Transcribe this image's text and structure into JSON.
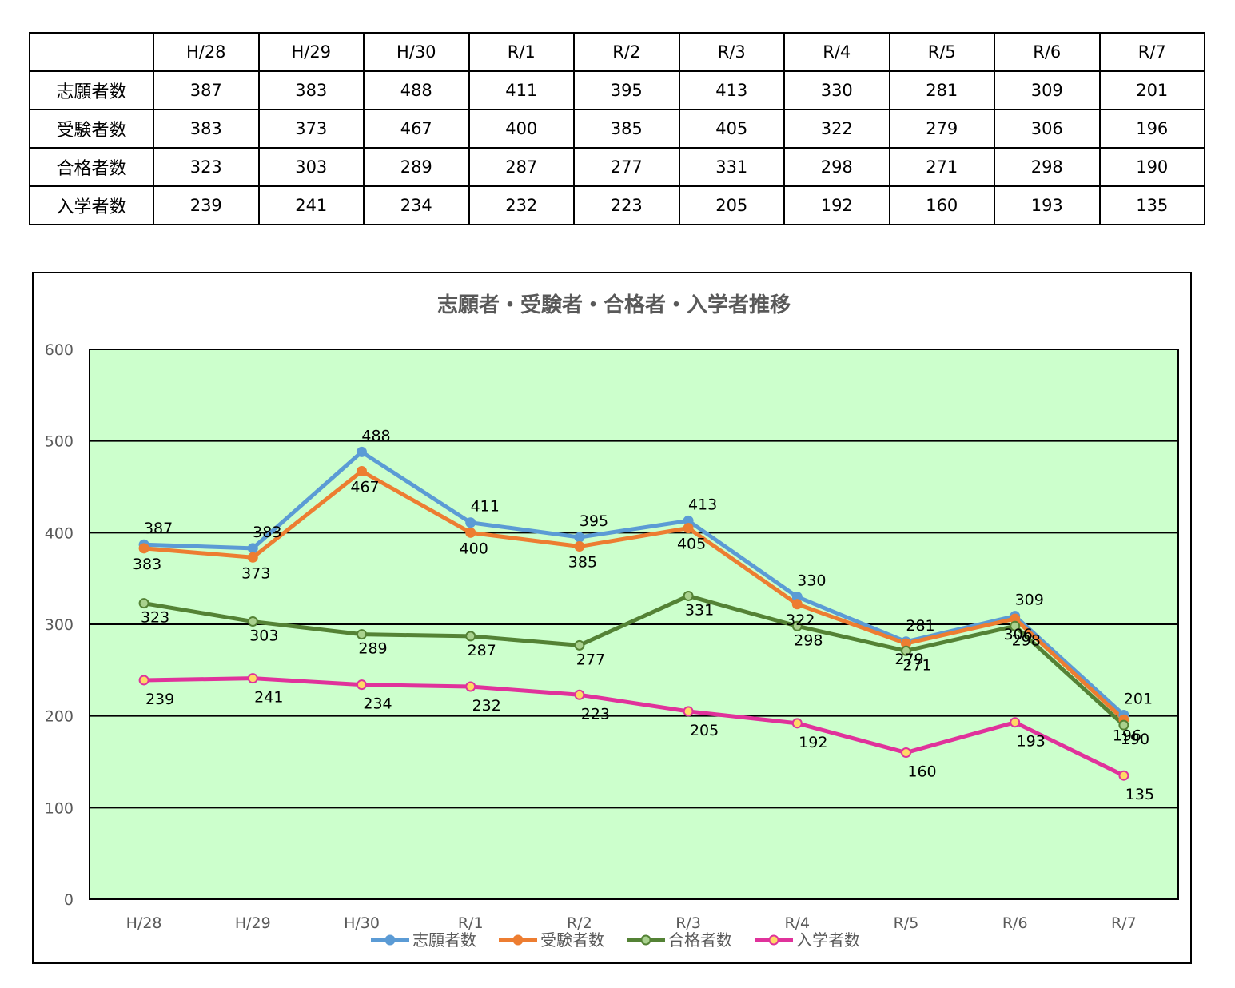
{
  "table": {
    "corner": "",
    "columns": [
      "H/28",
      "H/29",
      "H/30",
      "R/1",
      "R/2",
      "R/3",
      "R/4",
      "R/5",
      "R/6",
      "R/7"
    ],
    "rows": [
      {
        "label": "志願者数",
        "values": [
          "387",
          "383",
          "488",
          "411",
          "395",
          "413",
          "330",
          "281",
          "309",
          "201"
        ]
      },
      {
        "label": "受験者数",
        "values": [
          "383",
          "373",
          "467",
          "400",
          "385",
          "405",
          "322",
          "279",
          "306",
          "196"
        ]
      },
      {
        "label": "合格者数",
        "values": [
          "323",
          "303",
          "289",
          "287",
          "277",
          "331",
          "298",
          "271",
          "298",
          "190"
        ]
      },
      {
        "label": "入学者数",
        "values": [
          "239",
          "241",
          "234",
          "232",
          "223",
          "205",
          "192",
          "160",
          "193",
          "135"
        ]
      }
    ]
  },
  "chart_data": {
    "type": "line",
    "title": "志願者・受験者・合格者・入学者推移",
    "xlabel": "",
    "ylabel": "",
    "categories": [
      "H/28",
      "H/29",
      "H/30",
      "R/1",
      "R/2",
      "R/3",
      "R/4",
      "R/5",
      "R/6",
      "R/7"
    ],
    "ylim": [
      0,
      600
    ],
    "yticks": [
      0,
      100,
      200,
      300,
      400,
      500,
      600
    ],
    "grid": true,
    "legend": "bottom",
    "plot_background": "#ccffcc",
    "series": [
      {
        "name": "志願者数",
        "color": "#5b9bd5",
        "marker_fill": "#5b9bd5",
        "values": [
          387,
          383,
          488,
          411,
          395,
          413,
          330,
          281,
          309,
          201
        ]
      },
      {
        "name": "受験者数",
        "color": "#ed7d31",
        "marker_fill": "#ed7d31",
        "values": [
          383,
          373,
          467,
          400,
          385,
          405,
          322,
          279,
          306,
          196
        ]
      },
      {
        "name": "合格者数",
        "color": "#548235",
        "marker_fill": "#a9d18e",
        "values": [
          323,
          303,
          289,
          287,
          277,
          331,
          298,
          271,
          298,
          190
        ]
      },
      {
        "name": "入学者数",
        "color": "#e0329b",
        "marker_fill": "#ffd966",
        "values": [
          239,
          241,
          234,
          232,
          223,
          205,
          192,
          160,
          193,
          135
        ]
      }
    ]
  }
}
